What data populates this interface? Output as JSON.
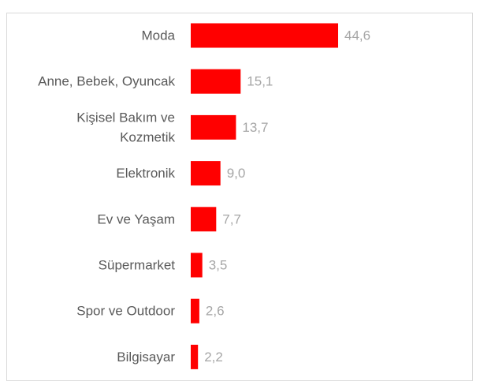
{
  "chart_data": {
    "type": "bar",
    "orientation": "horizontal",
    "categories": [
      "Moda",
      "Anne, Bebek, Oyuncak",
      "Kişisel Bakım ve Kozmetik",
      "Elektronik",
      "Ev ve Yaşam",
      "Süpermarket",
      "Spor ve Outdoor",
      "Bilgisayar"
    ],
    "category_lines": [
      [
        "Moda"
      ],
      [
        "Anne, Bebek, Oyuncak"
      ],
      [
        "Kişisel Bakım ve",
        "Kozmetik"
      ],
      [
        "Elektronik"
      ],
      [
        "Ev ve Yaşam"
      ],
      [
        "Süpermarket"
      ],
      [
        "Spor ve Outdoor"
      ],
      [
        "Bilgisayar"
      ]
    ],
    "values": [
      44.6,
      15.1,
      13.7,
      9.0,
      7.7,
      3.5,
      2.6,
      2.2
    ],
    "value_labels": [
      "44,6",
      "15,1",
      "13,7",
      "9,0",
      "7,7",
      "3,5",
      "2,6",
      "2,2"
    ],
    "bar_color": "#ff0000",
    "value_label_color": "#a6a6a6",
    "category_label_color": "#595959",
    "xlim": [
      0,
      50
    ],
    "grid": false,
    "legend": "none",
    "title": "",
    "xlabel": "",
    "ylabel": ""
  }
}
